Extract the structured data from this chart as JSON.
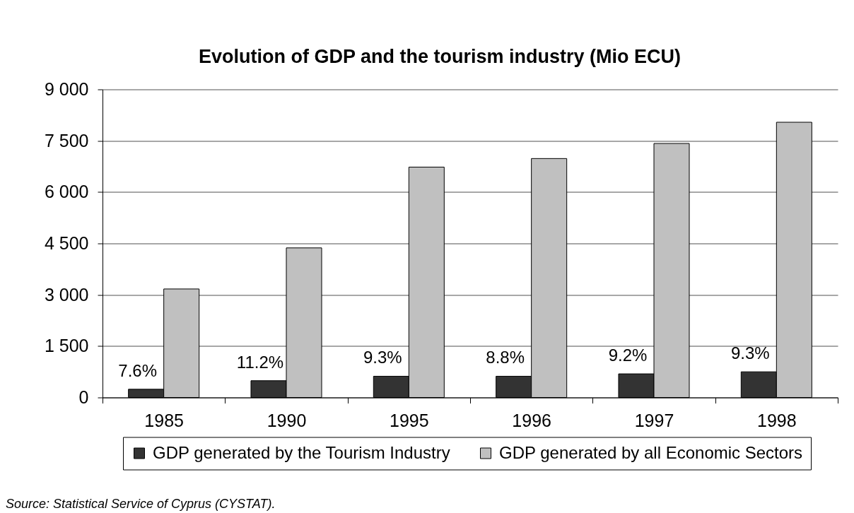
{
  "chart_data": {
    "type": "bar",
    "title": "Evolution of GDP and the tourism industry (Mio ECU)",
    "categories": [
      "1985",
      "1990",
      "1995",
      "1996",
      "1997",
      "1998"
    ],
    "series": [
      {
        "name": "GDP generated by the Tourism Industry",
        "color": "#333333",
        "values": [
          240,
          490,
          620,
          620,
          690,
          750
        ]
      },
      {
        "name": "GDP generated by all Economic Sectors",
        "color": "#c0c0c0",
        "values": [
          3170,
          4370,
          6730,
          6980,
          7420,
          8040
        ]
      }
    ],
    "ylim": [
      0,
      9000
    ],
    "yticks": [
      0,
      {
        "value": 1500,
        "label": "1 500"
      },
      {
        "value": 3000,
        "label": "3 000"
      },
      {
        "value": 4500,
        "label": "4 500"
      },
      {
        "value": 6000,
        "label": "6 000"
      },
      {
        "value": 7500,
        "label": "7 500"
      },
      {
        "value": 9000,
        "label": "9 000"
      }
    ],
    "grid": "y",
    "legend": "bottom",
    "annotations": [
      {
        "text": "7.6%",
        "x": "1985",
        "y": 240
      },
      {
        "text": "11.2%",
        "x": "1990",
        "y": 490
      },
      {
        "text": "9.3%",
        "x": "1995",
        "y": 620
      },
      {
        "text": "8.8%",
        "x": "1996",
        "y": 620
      },
      {
        "text": "9.2%",
        "x": "1997",
        "y": 690
      },
      {
        "text": "9.3%",
        "x": "1998",
        "y": 750
      },
      "Source: Statistical Service of Cyprus (CYSTAT)."
    ]
  }
}
